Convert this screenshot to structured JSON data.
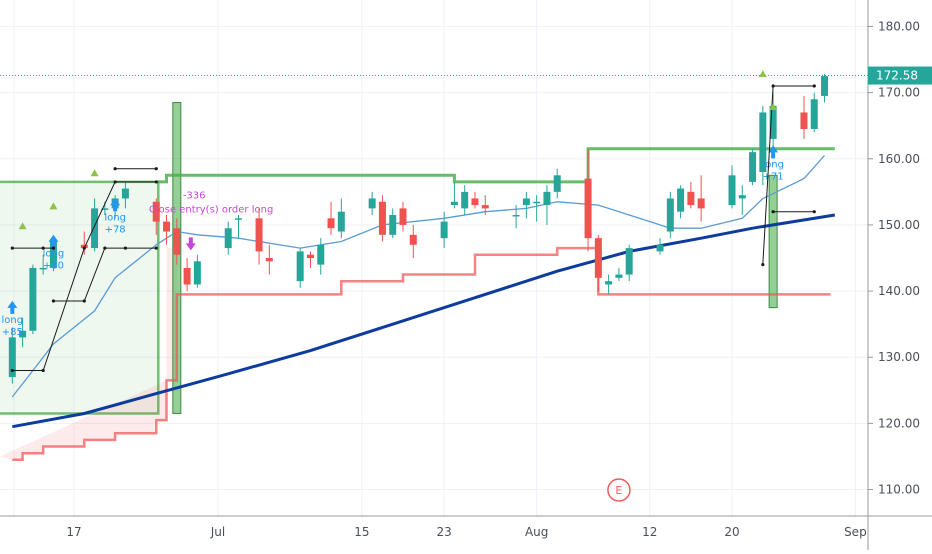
{
  "chart_data": {
    "type": "candlestick",
    "title": "",
    "xlabel": "",
    "ylabel": "",
    "ylim": [
      106,
      184
    ],
    "y_ticks": [
      "110.00",
      "120.00",
      "130.00",
      "140.00",
      "150.00",
      "160.00",
      "170.00",
      "180.00"
    ],
    "x_ticks": [
      "17",
      "Jul",
      "15",
      "23",
      "Aug",
      "12",
      "20",
      "Sep"
    ],
    "last_price": 172.58,
    "last_price_label": "172.58",
    "grid": true,
    "colors": {
      "up": "#26a69a",
      "down": "#ef5350",
      "ma_fast": "#5b9bd5",
      "ma_slow": "#0d3c9e",
      "channel_upper": "#4caf50",
      "channel_lower": "#f05a5a",
      "signal": "#2196f3",
      "exit": "#c546d9",
      "last_price": "#26a69a"
    },
    "candles": [
      {
        "d": "Jun 11",
        "o": 127,
        "h": 134.5,
        "l": 126,
        "c": 133
      },
      {
        "d": "Jun 12",
        "o": 133,
        "h": 136,
        "l": 131.5,
        "c": 134
      },
      {
        "d": "Jun 13",
        "o": 134,
        "h": 144,
        "l": 133.5,
        "c": 143.5
      },
      {
        "d": "Jun 14",
        "o": 143.5,
        "h": 145.5,
        "l": 142.5,
        "c": 143.5
      },
      {
        "d": "Jun 15",
        "o": 143.5,
        "h": 148,
        "l": 143,
        "c": 147.5
      },
      {
        "d": "Jun 18",
        "o": 147,
        "h": 149,
        "l": 145.5,
        "c": 146.5
      },
      {
        "d": "Jun 19",
        "o": 146.5,
        "h": 154,
        "l": 146,
        "c": 152.5
      },
      {
        "d": "Jun 20",
        "o": 152.5,
        "h": 153.5,
        "l": 151.5,
        "c": 152.5
      },
      {
        "d": "Jun 21",
        "o": 152.5,
        "h": 154.5,
        "l": 151,
        "c": 154
      },
      {
        "d": "Jun 22",
        "o": 154,
        "h": 156.5,
        "l": 152.5,
        "c": 155.5
      },
      {
        "d": "Jun 25",
        "o": 153.5,
        "h": 154,
        "l": 148.5,
        "c": 150.5
      },
      {
        "d": "Jun 26",
        "o": 150.5,
        "h": 151.5,
        "l": 147,
        "c": 149
      },
      {
        "d": "Jun 27",
        "o": 149.5,
        "h": 151,
        "l": 144,
        "c": 145.5
      },
      {
        "d": "Jun 28",
        "o": 143.5,
        "h": 145,
        "l": 140,
        "c": 141
      },
      {
        "d": "Jun 29",
        "o": 141,
        "h": 145.5,
        "l": 140.5,
        "c": 144.5
      },
      {
        "d": "Jul 2",
        "o": 146.5,
        "h": 150.5,
        "l": 145.5,
        "c": 149.5
      },
      {
        "d": "Jul 3",
        "o": 151,
        "h": 151.5,
        "l": 148,
        "c": 151
      },
      {
        "d": "Jul 5",
        "o": 151,
        "h": 152.5,
        "l": 144,
        "c": 146
      },
      {
        "d": "Jul 6",
        "o": 145,
        "h": 147,
        "l": 142.5,
        "c": 144.5
      },
      {
        "d": "Jul 9",
        "o": 141.5,
        "h": 146.5,
        "l": 140.5,
        "c": 146
      },
      {
        "d": "Jul 10",
        "o": 145.5,
        "h": 146,
        "l": 143.5,
        "c": 145
      },
      {
        "d": "Jul 11",
        "o": 144,
        "h": 148,
        "l": 142.5,
        "c": 147
      },
      {
        "d": "Jul 12",
        "o": 151,
        "h": 153.5,
        "l": 148.5,
        "c": 149.5
      },
      {
        "d": "Jul 13",
        "o": 149,
        "h": 154,
        "l": 148,
        "c": 152
      },
      {
        "d": "Jul 16",
        "o": 152.5,
        "h": 155,
        "l": 151.5,
        "c": 154
      },
      {
        "d": "Jul 17",
        "o": 153.5,
        "h": 154.5,
        "l": 147.5,
        "c": 148.5
      },
      {
        "d": "Jul 18",
        "o": 148.5,
        "h": 152.5,
        "l": 148,
        "c": 151.5
      },
      {
        "d": "Jul 19",
        "o": 152.5,
        "h": 153.5,
        "l": 149,
        "c": 150
      },
      {
        "d": "Jul 20",
        "o": 148.5,
        "h": 150,
        "l": 145,
        "c": 147
      },
      {
        "d": "Jul 23",
        "o": 148,
        "h": 152,
        "l": 146.5,
        "c": 150.5
      },
      {
        "d": "Jul 24",
        "o": 153,
        "h": 156.5,
        "l": 152.5,
        "c": 153.5
      },
      {
        "d": "Jul 25",
        "o": 152.5,
        "h": 156,
        "l": 151.5,
        "c": 155
      },
      {
        "d": "Jul 26",
        "o": 154,
        "h": 155,
        "l": 152.5,
        "c": 153
      },
      {
        "d": "Jul 27",
        "o": 153,
        "h": 154.5,
        "l": 151.5,
        "c": 152.5
      },
      {
        "d": "Jul 30",
        "o": 151.5,
        "h": 153,
        "l": 149.5,
        "c": 151.5
      },
      {
        "d": "Jul 31",
        "o": 153,
        "h": 155,
        "l": 151,
        "c": 154
      },
      {
        "d": "Aug 1",
        "o": 153.5,
        "h": 154.5,
        "l": 150.5,
        "c": 153.5
      },
      {
        "d": "Aug 2",
        "o": 153,
        "h": 156,
        "l": 150,
        "c": 155
      },
      {
        "d": "Aug 3",
        "o": 155,
        "h": 158.5,
        "l": 154,
        "c": 157.5
      },
      {
        "d": "Aug 6",
        "o": 157,
        "h": 161.5,
        "l": 146,
        "c": 148
      },
      {
        "d": "Aug 7",
        "o": 148,
        "h": 148.5,
        "l": 140,
        "c": 142
      },
      {
        "d": "Aug 8",
        "o": 141,
        "h": 142.5,
        "l": 139.5,
        "c": 141.5
      },
      {
        "d": "Aug 9",
        "o": 142,
        "h": 143.5,
        "l": 141.5,
        "c": 142.5
      },
      {
        "d": "Aug 10",
        "o": 142.5,
        "h": 147,
        "l": 141.5,
        "c": 146.5
      },
      {
        "d": "Aug 13",
        "o": 146,
        "h": 148,
        "l": 145.5,
        "c": 147
      },
      {
        "d": "Aug 14",
        "o": 149,
        "h": 155,
        "l": 148,
        "c": 154
      },
      {
        "d": "Aug 15",
        "o": 152,
        "h": 156,
        "l": 151,
        "c": 155.5
      },
      {
        "d": "Aug 16",
        "o": 155,
        "h": 156.5,
        "l": 152.5,
        "c": 153
      },
      {
        "d": "Aug 17",
        "o": 154,
        "h": 157.5,
        "l": 150.5,
        "c": 152.5
      },
      {
        "d": "Aug 20",
        "o": 153,
        "h": 159,
        "l": 152.5,
        "c": 157.5
      },
      {
        "d": "Aug 21",
        "o": 154,
        "h": 156,
        "l": 151.5,
        "c": 154.5
      },
      {
        "d": "Aug 22",
        "o": 156.5,
        "h": 161.5,
        "l": 156,
        "c": 161
      },
      {
        "d": "Aug 23",
        "o": 158,
        "h": 168,
        "l": 156,
        "c": 167
      },
      {
        "d": "Aug 24",
        "o": 163,
        "h": 170,
        "l": 161.5,
        "c": 168
      },
      {
        "d": "Aug 27",
        "o": 167,
        "h": 169.5,
        "l": 163,
        "c": 164.5
      },
      {
        "d": "Aug 28",
        "o": 164.5,
        "h": 170,
        "l": 164,
        "c": 169
      },
      {
        "d": "Aug 29",
        "o": 169.5,
        "h": 172.8,
        "l": 168.5,
        "c": 172.5
      }
    ],
    "ma_fast": [
      {
        "d": "Jun 11",
        "v": 124
      },
      {
        "d": "Jun 13",
        "v": 128
      },
      {
        "d": "Jun 15",
        "v": 132
      },
      {
        "d": "Jun 19",
        "v": 137
      },
      {
        "d": "Jun 21",
        "v": 142
      },
      {
        "d": "Jun 25",
        "v": 147
      },
      {
        "d": "Jun 27",
        "v": 149
      },
      {
        "d": "Jun 29",
        "v": 148.5
      },
      {
        "d": "Jul 3",
        "v": 148
      },
      {
        "d": "Jul 9",
        "v": 146.5
      },
      {
        "d": "Jul 13",
        "v": 147.5
      },
      {
        "d": "Jul 17",
        "v": 150
      },
      {
        "d": "Jul 23",
        "v": 151
      },
      {
        "d": "Jul 27",
        "v": 152
      },
      {
        "d": "Jul 31",
        "v": 152.5
      },
      {
        "d": "Aug 3",
        "v": 153.5
      },
      {
        "d": "Aug 7",
        "v": 153
      },
      {
        "d": "Aug 10",
        "v": 151.5
      },
      {
        "d": "Aug 14",
        "v": 149.5
      },
      {
        "d": "Aug 17",
        "v": 149.5
      },
      {
        "d": "Aug 21",
        "v": 151
      },
      {
        "d": "Aug 23",
        "v": 154
      },
      {
        "d": "Aug 27",
        "v": 157
      },
      {
        "d": "Aug 29",
        "v": 160.5
      }
    ],
    "ma_slow": [
      {
        "d": "Jun 11",
        "v": 119.5
      },
      {
        "d": "Jun 18",
        "v": 121.5
      },
      {
        "d": "Jun 25",
        "v": 124.5
      },
      {
        "d": "Jul 2",
        "v": 127.5
      },
      {
        "d": "Jul 10",
        "v": 131
      },
      {
        "d": "Jul 18",
        "v": 135
      },
      {
        "d": "Jul 26",
        "v": 139
      },
      {
        "d": "Aug 3",
        "v": 143
      },
      {
        "d": "Aug 10",
        "v": 146
      },
      {
        "d": "Aug 17",
        "v": 148
      },
      {
        "d": "Aug 22",
        "v": 149.5
      },
      {
        "d": "Aug 30",
        "v": 151.5
      }
    ],
    "channel_upper": [
      {
        "d": "Jun 25",
        "v": 156.5
      },
      {
        "d": "Jun 26",
        "v": 157.5
      },
      {
        "d": "Jul 23",
        "v": 157.5
      },
      {
        "d": "Jul 24",
        "v": 156.5
      },
      {
        "d": "Aug 3",
        "v": 156.5
      },
      {
        "d": "Aug 6",
        "v": 161.5
      },
      {
        "d": "Aug 30",
        "v": 161.5
      }
    ],
    "channel_lower": [
      {
        "d": "Jun 11",
        "v": 114.5
      },
      {
        "d": "Jun 12",
        "v": 115.5
      },
      {
        "d": "Jun 14",
        "v": 116.5
      },
      {
        "d": "Jun 18",
        "v": 117.5
      },
      {
        "d": "Jun 21",
        "v": 118.5
      },
      {
        "d": "Jun 25",
        "v": 120.5
      },
      {
        "d": "Jun 26",
        "v": 126.5
      },
      {
        "d": "Jun 27",
        "v": 139.5
      },
      {
        "d": "Jul 13",
        "v": 141.5
      },
      {
        "d": "Jul 19",
        "v": 142.5
      },
      {
        "d": "Jul 26",
        "v": 145.5
      },
      {
        "d": "Aug 3",
        "v": 146.5
      },
      {
        "d": "Aug 7",
        "v": 139.5
      },
      {
        "d": "Aug 29",
        "v": 139.5
      }
    ],
    "annotations": [
      {
        "d": "Jun 11",
        "label1": "long",
        "label2": "+85",
        "price": 135.5
      },
      {
        "d": "Jun 15",
        "label1": "long",
        "label2": "+80",
        "price": 145.5
      },
      {
        "d": "Jun 21",
        "label1": "long",
        "label2": "+78",
        "price": 151
      },
      {
        "d": "Aug 24",
        "label1": "long",
        "label2": "+71",
        "price": 159
      },
      {
        "d": "Jun 27",
        "label1": "-336",
        "label2": "Close entry(s) order long",
        "price": 152.5
      }
    ],
    "earnings_marker": "E",
    "earnings_date": "Aug 9"
  }
}
